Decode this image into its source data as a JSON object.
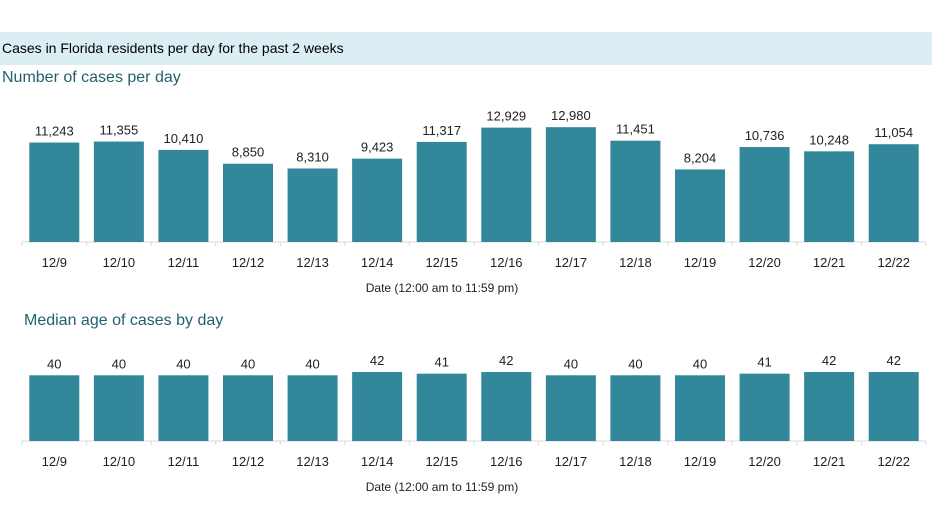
{
  "header": {
    "banner_title": "Cases in Florida residents per day for the past 2 weeks"
  },
  "colors": {
    "bar": "#32879b",
    "title": "#22606e",
    "banner_bg": "#dbeef4",
    "axis": "#d9d9d9",
    "text": "#222222"
  },
  "chart_data": [
    {
      "type": "bar",
      "title": "Number of cases per day",
      "xlabel": "Date (12:00 am to 11:59 pm)",
      "ylabel": "",
      "ylim": [
        0,
        13000
      ],
      "grid": false,
      "categories": [
        "12/9",
        "12/10",
        "12/11",
        "12/12",
        "12/13",
        "12/14",
        "12/15",
        "12/16",
        "12/17",
        "12/18",
        "12/19",
        "12/20",
        "12/21",
        "12/22"
      ],
      "values": [
        11243,
        11355,
        10410,
        8850,
        8310,
        9423,
        11317,
        12929,
        12980,
        11451,
        8204,
        10736,
        10248,
        11054
      ],
      "value_labels": [
        "11,243",
        "11,355",
        "10,410",
        "8,850",
        "8,310",
        "9,423",
        "11,317",
        "12,929",
        "12,980",
        "11,451",
        "8,204",
        "10,736",
        "10,248",
        "11,054"
      ]
    },
    {
      "type": "bar",
      "title": "Median age of cases by day",
      "xlabel": "Date (12:00 am to 11:59 pm)",
      "ylabel": "",
      "ylim": [
        0,
        42
      ],
      "grid": false,
      "categories": [
        "12/9",
        "12/10",
        "12/11",
        "12/12",
        "12/13",
        "12/14",
        "12/15",
        "12/16",
        "12/17",
        "12/18",
        "12/19",
        "12/20",
        "12/21",
        "12/22"
      ],
      "values": [
        40,
        40,
        40,
        40,
        40,
        42,
        41,
        42,
        40,
        40,
        40,
        41,
        42,
        42
      ],
      "value_labels": [
        "40",
        "40",
        "40",
        "40",
        "40",
        "42",
        "41",
        "42",
        "40",
        "40",
        "40",
        "41",
        "42",
        "42"
      ]
    }
  ]
}
